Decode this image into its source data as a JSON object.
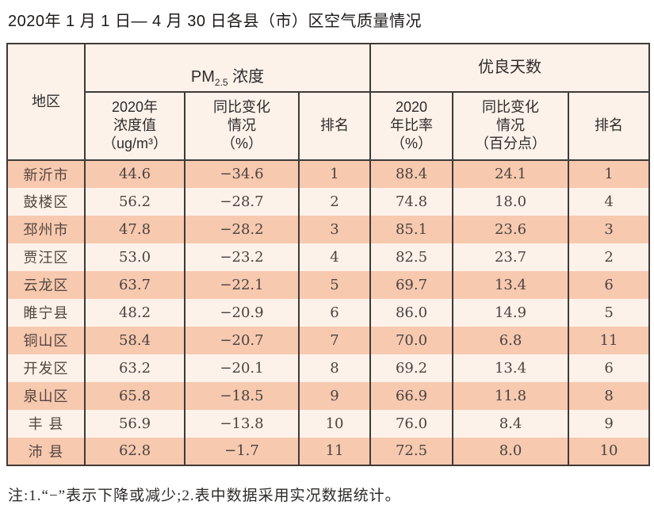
{
  "title": "2020年 1 月 1 日— 4 月 30 日各县（市）区空气质量情况",
  "footnote": "注:1.“−”表示下降或减少;2.表中数据采用实况数据统计。",
  "colors": {
    "row_odd": "#f7c9af",
    "row_even": "#fdf2ea",
    "header_bg": "#fcf2ea",
    "border": "#403a37",
    "text": "#4a4341"
  },
  "table": {
    "header": {
      "region": "地区",
      "pm25_prefix": "PM",
      "pm25_sub": "2.5",
      "pm25_suffix": " 浓度",
      "good_days_group": "优良天数",
      "pm25_value": "2020年\n浓度值\n（ug/m³）",
      "pm25_change": "同比变化\n情况\n（%）",
      "pm25_rank": "排名",
      "good_ratio": "2020\n年比率\n（%）",
      "good_change": "同比变化\n情况\n（百分点）",
      "good_rank": "排名"
    }
  },
  "chart_data": {
    "type": "table",
    "title": "2020年1月1日—4月30日各县（市）区空气质量情况",
    "column_groups": [
      "地区",
      "PM2.5浓度",
      "优良天数"
    ],
    "columns": [
      "地区",
      "PM2.5 2020年浓度值（ug/m³）",
      "PM2.5 同比变化情况（%）",
      "PM2.5 排名",
      "优良天数 2020年比率（%）",
      "优良天数 同比变化情况（百分点）",
      "优良天数 排名"
    ],
    "rows": [
      [
        "新沂市",
        "44.6",
        "−34.6",
        "1",
        "88.4",
        "24.1",
        "1"
      ],
      [
        "鼓楼区",
        "56.2",
        "−28.7",
        "2",
        "74.8",
        "18.0",
        "4"
      ],
      [
        "邳州市",
        "47.8",
        "−28.2",
        "3",
        "85.1",
        "23.6",
        "3"
      ],
      [
        "贾汪区",
        "53.0",
        "−23.2",
        "4",
        "82.5",
        "23.7",
        "2"
      ],
      [
        "云龙区",
        "63.7",
        "−22.1",
        "5",
        "69.7",
        "13.4",
        "6"
      ],
      [
        "睢宁县",
        "48.2",
        "−20.9",
        "6",
        "86.0",
        "14.9",
        "5"
      ],
      [
        "铜山区",
        "58.4",
        "−20.7",
        "7",
        "70.0",
        "6.8",
        "11"
      ],
      [
        "开发区",
        "63.2",
        "−20.1",
        "8",
        "69.2",
        "13.4",
        "6"
      ],
      [
        "泉山区",
        "65.8",
        "−18.5",
        "9",
        "66.9",
        "11.8",
        "8"
      ],
      [
        "丰 县",
        "56.9",
        "−13.8",
        "10",
        "76.0",
        "8.4",
        "9"
      ],
      [
        "沛 县",
        "62.8",
        "−1.7",
        "11",
        "72.5",
        "8.0",
        "10"
      ]
    ],
    "notes": "注:1.“−”表示下降或减少;2.表中数据采用实况数据统计。"
  }
}
